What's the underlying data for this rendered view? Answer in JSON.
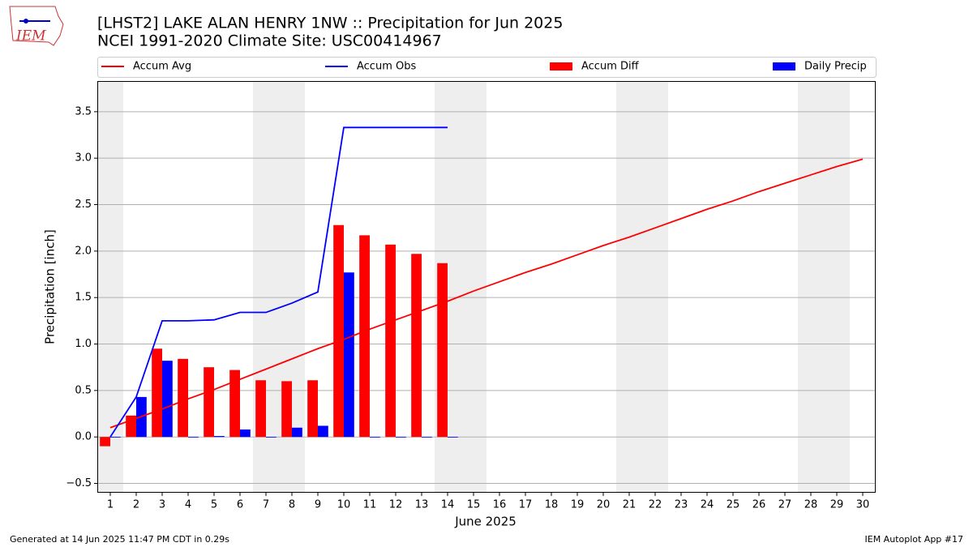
{
  "logo": "IEM",
  "footer": {
    "left": "Generated at 14 Jun 2025 11:47 PM CDT in 0.29s",
    "right": "IEM Autoplot App #17"
  },
  "chart_data": {
    "type": "bar",
    "title": "[LHST2] LAKE ALAN HENRY 1NW :: Precipitation for Jun 2025",
    "subtitle": "NCEI 1991-2020 Climate Site: USC00414967",
    "xlabel": "June 2025",
    "ylabel": "Precipitation [inch]",
    "x": [
      1,
      2,
      3,
      4,
      5,
      6,
      7,
      8,
      9,
      10,
      11,
      12,
      13,
      14,
      15,
      16,
      17,
      18,
      19,
      20,
      21,
      22,
      23,
      24,
      25,
      26,
      27,
      28,
      29,
      30
    ],
    "xlim": [
      0.5,
      30.5
    ],
    "xticks": [
      1,
      2,
      3,
      4,
      5,
      6,
      7,
      8,
      9,
      10,
      11,
      12,
      13,
      14,
      15,
      16,
      17,
      18,
      19,
      20,
      21,
      22,
      23,
      24,
      25,
      26,
      27,
      28,
      29,
      30
    ],
    "ylim": [
      -0.6,
      3.83
    ],
    "yticks": [
      {
        "value": -0.5,
        "label": "−0.5"
      },
      {
        "value": 0,
        "label": "0.0"
      },
      {
        "value": 0.5,
        "label": "0.5"
      },
      {
        "value": 1,
        "label": "1.0"
      },
      {
        "value": 1.5,
        "label": "1.5"
      },
      {
        "value": 2,
        "label": "2.0"
      },
      {
        "value": 2.5,
        "label": "2.5"
      },
      {
        "value": 3,
        "label": "3.0"
      },
      {
        "value": 3.5,
        "label": "3.5"
      }
    ],
    "grid": true,
    "shaded_ranges": [
      [
        0.5,
        1.5
      ],
      [
        6.5,
        8.5
      ],
      [
        13.5,
        15.5
      ],
      [
        20.5,
        22.5
      ],
      [
        27.5,
        29.5
      ]
    ],
    "series": [
      {
        "name": "Accum Avg",
        "type": "line",
        "color": "#ff0000",
        "values": [
          0.1,
          0.2,
          0.3,
          0.41,
          0.51,
          0.62,
          0.73,
          0.84,
          0.95,
          1.05,
          1.16,
          1.26,
          1.36,
          1.46,
          1.57,
          1.67,
          1.77,
          1.86,
          1.96,
          2.06,
          2.15,
          2.25,
          2.35,
          2.45,
          2.54,
          2.64,
          2.73,
          2.82,
          2.91,
          2.99
        ]
      },
      {
        "name": "Accum Obs",
        "type": "line",
        "color": "#0000ff",
        "values": [
          0.0,
          0.43,
          1.25,
          1.25,
          1.26,
          1.34,
          1.34,
          1.44,
          1.56,
          3.33,
          3.33,
          3.33,
          3.33,
          3.33,
          null,
          null,
          null,
          null,
          null,
          null,
          null,
          null,
          null,
          null,
          null,
          null,
          null,
          null,
          null,
          null
        ]
      },
      {
        "name": "Accum Diff",
        "type": "bar",
        "color": "#ff0000",
        "offset": -0.4,
        "width": 0.4,
        "values": [
          -0.1,
          0.23,
          0.95,
          0.84,
          0.75,
          0.72,
          0.61,
          0.6,
          0.61,
          2.28,
          2.17,
          2.07,
          1.97,
          1.87,
          null,
          null,
          null,
          null,
          null,
          null,
          null,
          null,
          null,
          null,
          null,
          null,
          null,
          null,
          null,
          null
        ]
      },
      {
        "name": "Daily Precip",
        "type": "bar",
        "color": "#0000ff",
        "offset": 0,
        "width": 0.4,
        "values": [
          0,
          0.43,
          0.82,
          0,
          0.01,
          0.08,
          0,
          0.1,
          0.12,
          1.77,
          0,
          0,
          0,
          0,
          null,
          null,
          null,
          null,
          null,
          null,
          null,
          null,
          null,
          null,
          null,
          null,
          null,
          null,
          null,
          null
        ]
      }
    ]
  }
}
